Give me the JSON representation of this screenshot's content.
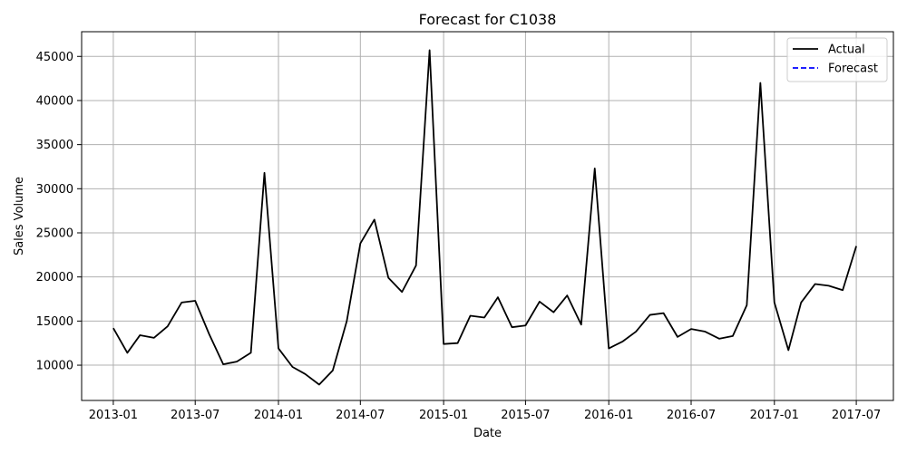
{
  "chart_data": {
    "type": "line",
    "title": "Forecast for C1038",
    "xlabel": "Date",
    "ylabel": "Sales Volume",
    "grid": true,
    "legend_position": "top-right",
    "xlim": [
      "2012-10-23",
      "2017-09-21"
    ],
    "ylim": [
      6000,
      47800
    ],
    "x_ticks": [
      "2013-01",
      "2013-07",
      "2014-01",
      "2014-07",
      "2015-01",
      "2015-07",
      "2016-01",
      "2016-07",
      "2017-01",
      "2017-07"
    ],
    "y_ticks": [
      10000,
      15000,
      20000,
      25000,
      30000,
      35000,
      40000,
      45000
    ],
    "series": [
      {
        "name": "Actual",
        "color": "#000000",
        "style": "solid",
        "x": [
          "2013-01",
          "2013-02",
          "2013-03",
          "2013-04",
          "2013-05",
          "2013-06",
          "2013-07",
          "2013-08",
          "2013-09",
          "2013-10",
          "2013-11",
          "2013-12",
          "2014-01",
          "2014-02",
          "2014-03",
          "2014-04",
          "2014-05",
          "2014-06",
          "2014-07",
          "2014-08",
          "2014-09",
          "2014-10",
          "2014-11",
          "2014-12",
          "2015-01",
          "2015-02",
          "2015-03",
          "2015-04",
          "2015-05",
          "2015-06",
          "2015-07",
          "2015-08",
          "2015-09",
          "2015-10",
          "2015-11",
          "2015-12",
          "2016-01",
          "2016-02",
          "2016-03",
          "2016-04",
          "2016-05",
          "2016-06",
          "2016-07",
          "2016-08",
          "2016-09",
          "2016-10",
          "2016-11",
          "2016-12",
          "2017-01",
          "2017-02",
          "2017-03",
          "2017-04",
          "2017-05",
          "2017-06",
          "2017-07"
        ],
        "values": [
          14200,
          11400,
          13400,
          13100,
          14400,
          17100,
          17300,
          13500,
          10100,
          10400,
          11400,
          31800,
          11900,
          9800,
          9000,
          7800,
          9400,
          15000,
          23800,
          26500,
          19900,
          18300,
          21300,
          45700,
          12400,
          12500,
          15600,
          15400,
          17700,
          14300,
          14500,
          17200,
          16000,
          17900,
          14600,
          32300,
          11900,
          12700,
          13800,
          15700,
          15900,
          13200,
          14100,
          13800,
          13000,
          13300,
          16800,
          42000,
          17100,
          11700,
          17100,
          19200,
          19000,
          18500,
          23500
        ]
      },
      {
        "name": "Forecast",
        "color": "#0000ff",
        "style": "dashed",
        "x": [],
        "values": []
      }
    ]
  }
}
